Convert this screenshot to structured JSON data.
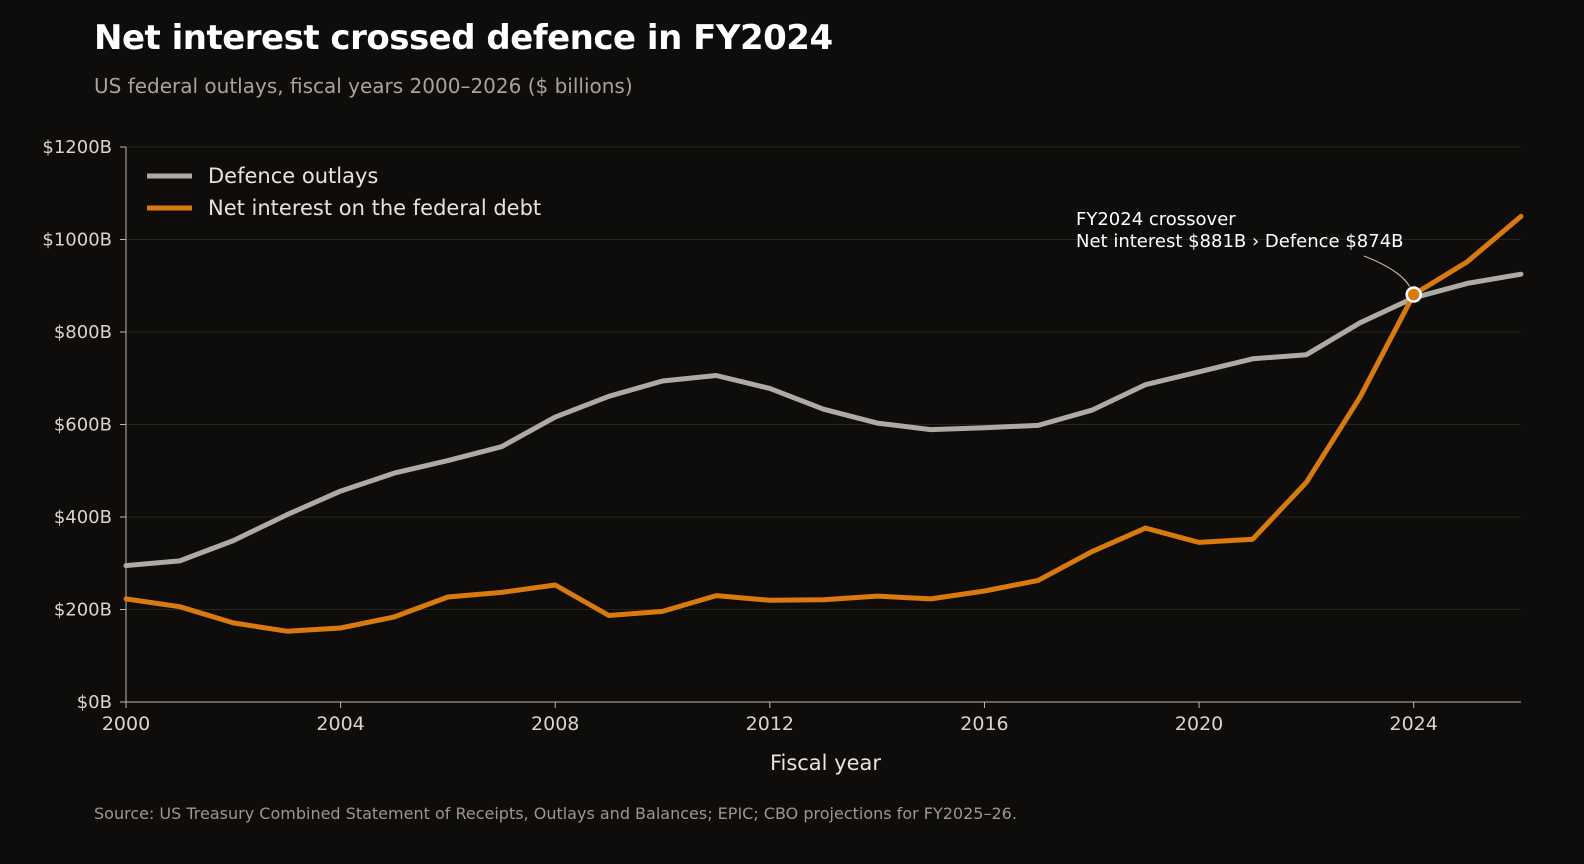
{
  "title": "Net interest crossed defence in FY2024",
  "subtitle": "US federal outlays, fiscal years 2000–2026 ($ billions)",
  "source": "Source: US Treasury Combined Statement of Receipts, Outlays and Balances; EPIC; CBO projections for FY2025–26.",
  "colors": {
    "background": "#0e0d0b",
    "defence": "#aeaaa4",
    "interest": "#d97a10",
    "grid": "#26241f",
    "axis": "#bdb8b0",
    "tick_text": "#d9d5ce"
  },
  "chart_data": {
    "type": "line",
    "xlabel": "Fiscal year",
    "ylabel": "",
    "xlim": [
      2000,
      2026
    ],
    "ylim": [
      0,
      1200
    ],
    "x_ticks": [
      2000,
      2004,
      2008,
      2012,
      2016,
      2020,
      2024
    ],
    "x_tick_labels": [
      "2000",
      "2004",
      "2008",
      "2012",
      "2016",
      "2020",
      "2024"
    ],
    "y_ticks": [
      0,
      200,
      400,
      600,
      800,
      1000,
      1200
    ],
    "y_tick_labels": [
      "$0B",
      "$200B",
      "$400B",
      "$600B",
      "$800B",
      "$1000B",
      "$1200B"
    ],
    "grid": true,
    "legend_position": "top-left",
    "x": [
      2000,
      2001,
      2002,
      2003,
      2004,
      2005,
      2006,
      2007,
      2008,
      2009,
      2010,
      2011,
      2012,
      2013,
      2014,
      2015,
      2016,
      2017,
      2018,
      2019,
      2020,
      2021,
      2022,
      2023,
      2024,
      2025,
      2026
    ],
    "series": [
      {
        "name": "Defence outlays",
        "color": "#aeaaa4",
        "values": [
          295,
          305,
          349,
          405,
          456,
          495,
          522,
          552,
          616,
          661,
          694,
          706,
          678,
          633,
          603,
          589,
          593,
          598,
          631,
          686,
          714,
          742,
          751,
          820,
          874,
          905,
          925
        ]
      },
      {
        "name": "Net interest on the federal debt",
        "color": "#d97a10",
        "values": [
          223,
          206,
          171,
          153,
          160,
          184,
          227,
          237,
          253,
          187,
          196,
          230,
          220,
          221,
          229,
          223,
          240,
          263,
          325,
          376,
          345,
          352,
          475,
          659,
          881,
          952,
          1050
        ]
      }
    ],
    "annotations": [
      {
        "x": 2024,
        "y": 881,
        "line1": "FY2024 crossover",
        "line2": "Net interest $881B  ›  Defence $874B"
      }
    ]
  }
}
